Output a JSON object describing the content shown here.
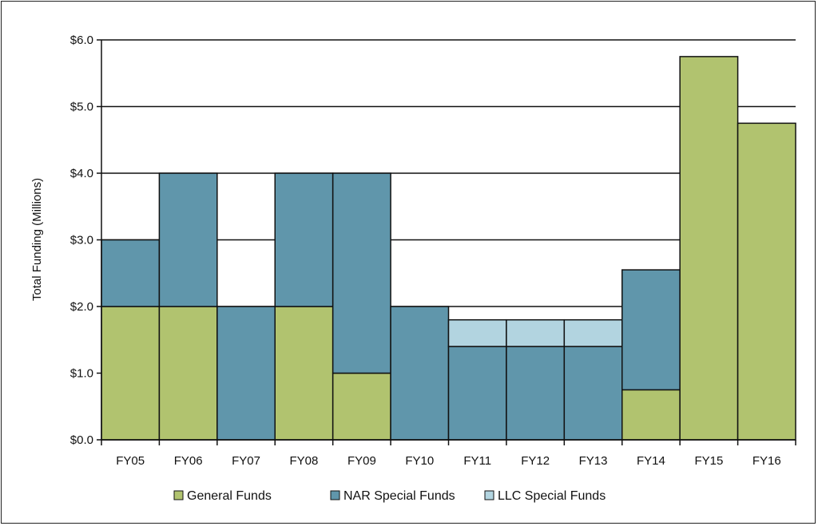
{
  "chart_data": {
    "type": "bar",
    "stacked": true,
    "title": "",
    "xlabel": "",
    "ylabel": "Total Funding (Millions)",
    "ylim": [
      0,
      6
    ],
    "yticks": [
      "$0.0",
      "$1.0",
      "$2.0",
      "$3.0",
      "$4.0",
      "$5.0",
      "$6.0"
    ],
    "grid": true,
    "legend_position": "bottom",
    "categories": [
      "FY05",
      "FY06",
      "FY07",
      "FY08",
      "FY09",
      "FY10",
      "FY11",
      "FY12",
      "FY13",
      "FY14",
      "FY15",
      "FY16"
    ],
    "series": [
      {
        "name": "General Funds",
        "color": "#b1c36f",
        "values": [
          2,
          2,
          0,
          2,
          1,
          0,
          0,
          0,
          0,
          0.75,
          5.75,
          4.75
        ]
      },
      {
        "name": "NAR Special Funds",
        "color": "#6096ab",
        "values": [
          1,
          2,
          2,
          2,
          3,
          2,
          1.4,
          1.4,
          1.4,
          1.8,
          0,
          0
        ]
      },
      {
        "name": "LLC Special Funds",
        "color": "#b2d4e0",
        "values": [
          0,
          0,
          0,
          0,
          0,
          0,
          0.4,
          0.4,
          0.4,
          0,
          0,
          0
        ]
      }
    ]
  }
}
